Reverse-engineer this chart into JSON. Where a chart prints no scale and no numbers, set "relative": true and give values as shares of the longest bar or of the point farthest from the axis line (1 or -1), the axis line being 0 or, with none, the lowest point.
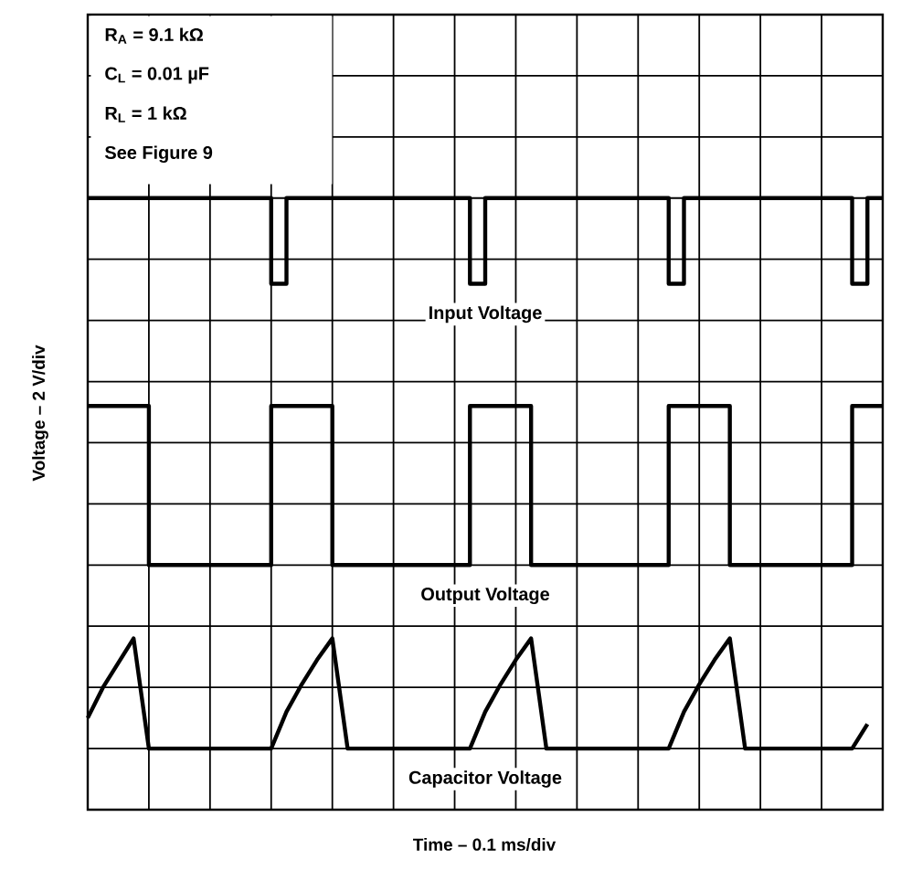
{
  "chart_data": {
    "type": "step",
    "relative": true,
    "xlabel": "Time – 0.1 ms/div",
    "ylabel": "Voltage – 2 V/div",
    "annotations": [
      "R$_{A}$ = 9.1 kΩ",
      "C$_{L}$ = 0.01 µF",
      "R$_{L}$ = 1 kΩ",
      "See Figure 9"
    ],
    "categories": [
      null,
      null,
      null,
      null,
      null,
      null,
      null,
      null,
      null,
      null,
      null,
      null,
      null,
      null,
      null,
      null,
      null,
      null,
      null,
      null,
      null,
      null,
      null,
      null,
      null,
      null,
      null,
      null,
      null,
      null,
      null,
      null,
      null,
      null,
      null,
      null,
      null,
      null,
      null,
      null,
      null,
      null,
      null,
      null,
      null,
      null,
      null,
      null,
      null,
      null,
      null,
      null,
      null
    ],
    "grid": true,
    "line_style": "solid",
    "series": [
      {
        "name": "Input Voltage",
        "color": "#000000",
        "values": [
          1,
          1,
          1,
          1,
          1,
          1,
          1,
          1,
          1,
          1,
          1,
          1,
          0.86,
          1,
          1,
          1,
          1,
          1,
          1,
          1,
          1,
          1,
          1,
          1,
          1,
          0.86,
          1,
          1,
          1,
          1,
          1,
          1,
          1,
          1,
          1,
          1,
          1,
          1,
          0.86,
          1,
          1,
          1,
          1,
          1,
          1,
          1,
          1,
          1,
          1,
          1,
          0.86,
          1,
          1
        ]
      },
      {
        "name": "Output Voltage",
        "color": "#000000",
        "values": [
          0.66,
          0.66,
          0.66,
          0.66,
          0.4,
          0.4,
          0.4,
          0.4,
          0.4,
          0.4,
          0.4,
          0.4,
          0.66,
          0.66,
          0.66,
          0.66,
          0.4,
          0.4,
          0.4,
          0.4,
          0.4,
          0.4,
          0.4,
          0.4,
          0.4,
          0.66,
          0.66,
          0.66,
          0.66,
          0.4,
          0.4,
          0.4,
          0.4,
          0.4,
          0.4,
          0.4,
          0.4,
          0.4,
          0.66,
          0.66,
          0.66,
          0.66,
          0.4,
          0.4,
          0.4,
          0.4,
          0.4,
          0.4,
          0.4,
          0.4,
          0.66,
          0.66,
          0.66
        ]
      },
      {
        "name": "Capacitor Voltage",
        "type": "line",
        "color": "#000000",
        "values": [
          0.15,
          0.2,
          0.24,
          0.28,
          0.1,
          0.1,
          0.1,
          0.1,
          0.1,
          0.1,
          0.1,
          0.1,
          0.1,
          0.16,
          0.205,
          0.245,
          0.28,
          0.1,
          0.1,
          0.1,
          0.1,
          0.1,
          0.1,
          0.1,
          0.1,
          0.1,
          0.16,
          0.205,
          0.245,
          0.28,
          0.1,
          0.1,
          0.1,
          0.1,
          0.1,
          0.1,
          0.1,
          0.1,
          0.1,
          0.16,
          0.205,
          0.245,
          0.28,
          0.1,
          0.1,
          0.1,
          0.1,
          0.1,
          0.1,
          0.1,
          0.1,
          0.14,
          null
        ]
      }
    ]
  }
}
